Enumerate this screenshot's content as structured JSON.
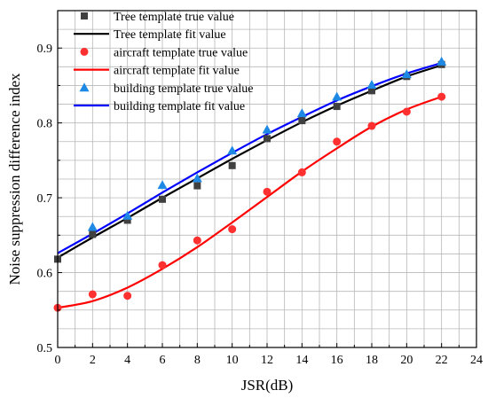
{
  "chart_data": {
    "type": "line",
    "xlabel": "JSR(dB)",
    "ylabel": "Noise suppression difference index",
    "xlim": [
      0,
      24
    ],
    "ylim": [
      0.5,
      0.95
    ],
    "xticks": [
      0,
      2,
      4,
      6,
      8,
      10,
      12,
      14,
      16,
      18,
      20,
      22,
      24
    ],
    "yticks": [
      0.5,
      0.6,
      0.7,
      0.8,
      0.9
    ],
    "ytick_labels": [
      "0.5",
      "0.6",
      "0.7",
      "0.8",
      "0.9"
    ],
    "grid": true,
    "legend_position": "top-left",
    "series": [
      {
        "name": "Tree template true value",
        "kind": "scatter",
        "marker": "square",
        "color": "#404040",
        "x": [
          0,
          2,
          4,
          6,
          8,
          10,
          12,
          14,
          16,
          18,
          20,
          22
        ],
        "y": [
          0.618,
          0.651,
          0.67,
          0.698,
          0.716,
          0.743,
          0.779,
          0.803,
          0.822,
          0.843,
          0.862,
          0.878
        ]
      },
      {
        "name": "Tree template fit value",
        "kind": "line",
        "color": "#000000",
        "x": [
          0,
          2,
          4,
          6,
          8,
          10,
          12,
          14,
          16,
          18,
          20,
          22
        ],
        "y": [
          0.62,
          0.647,
          0.673,
          0.7,
          0.726,
          0.752,
          0.777,
          0.801,
          0.823,
          0.843,
          0.862,
          0.877
        ]
      },
      {
        "name": "aircraft template true value",
        "kind": "scatter",
        "marker": "circle",
        "color": "#ff3030",
        "x": [
          0,
          2,
          4,
          6,
          8,
          10,
          12,
          14,
          16,
          18,
          20,
          22
        ],
        "y": [
          0.553,
          0.571,
          0.569,
          0.61,
          0.643,
          0.658,
          0.708,
          0.734,
          0.775,
          0.796,
          0.815,
          0.835
        ]
      },
      {
        "name": "aircraft template fit value",
        "kind": "line",
        "color": "#ff0000",
        "x": [
          0,
          2,
          4,
          6,
          8,
          10,
          12,
          14,
          16,
          18,
          20,
          22
        ],
        "y": [
          0.553,
          0.562,
          0.58,
          0.605,
          0.634,
          0.667,
          0.701,
          0.735,
          0.766,
          0.795,
          0.818,
          0.835
        ]
      },
      {
        "name": "building template true value",
        "kind": "scatter",
        "marker": "triangle",
        "color": "#1e88e5",
        "x": [
          2,
          4,
          6,
          8,
          10,
          12,
          14,
          16,
          18,
          20,
          22
        ],
        "y": [
          0.661,
          0.676,
          0.717,
          0.726,
          0.763,
          0.791,
          0.813,
          0.835,
          0.851,
          0.865,
          0.882
        ]
      },
      {
        "name": "building template fit value",
        "kind": "line",
        "color": "#0000ff",
        "x": [
          0,
          2,
          4,
          6,
          8,
          10,
          12,
          14,
          16,
          18,
          20,
          22
        ],
        "y": [
          0.626,
          0.652,
          0.679,
          0.707,
          0.734,
          0.76,
          0.785,
          0.808,
          0.83,
          0.849,
          0.866,
          0.88
        ]
      }
    ]
  }
}
